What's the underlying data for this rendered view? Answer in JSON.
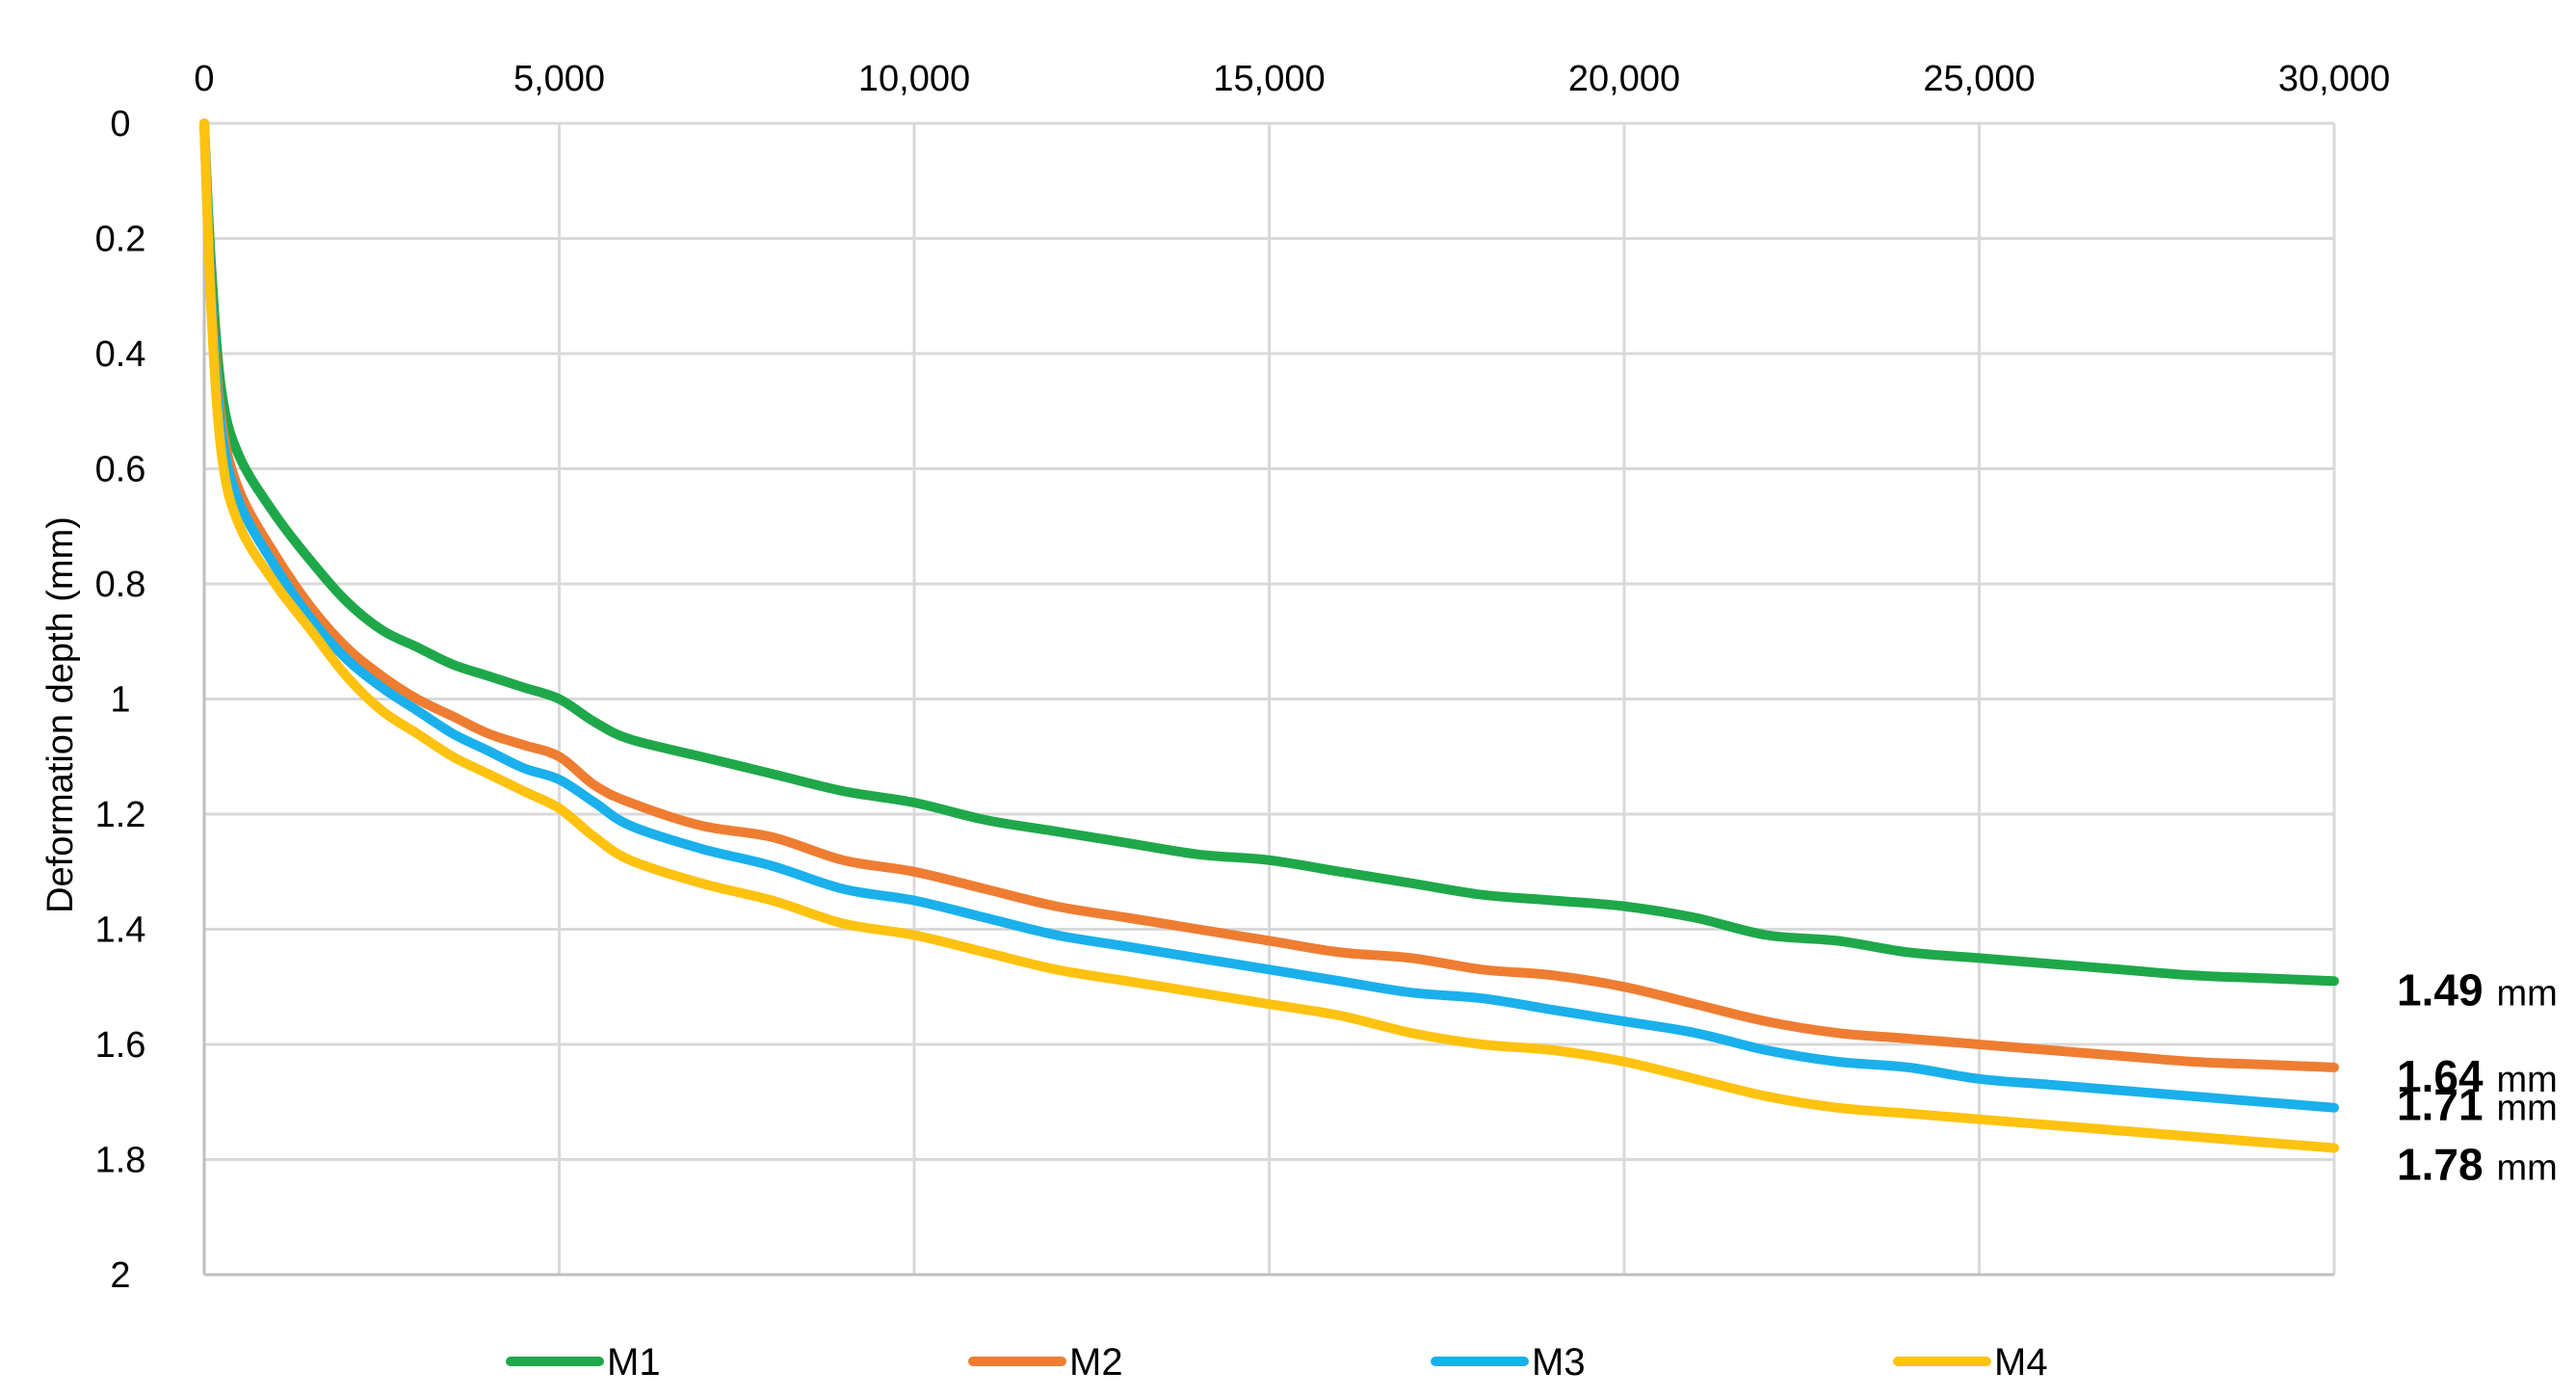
{
  "chart_data": {
    "type": "line",
    "title": "",
    "xlabel": "",
    "ylabel": "Deformation depth (mm)",
    "xlim": [
      0,
      30000
    ],
    "ylim": [
      0,
      2
    ],
    "y_inverted": true,
    "x_axis_position": "top",
    "grid": true,
    "legend_position": "bottom",
    "x_ticks": [
      {
        "value": 0,
        "label": "0"
      },
      {
        "value": 5000,
        "label": "5,000"
      },
      {
        "value": 10000,
        "label": "10,000"
      },
      {
        "value": 15000,
        "label": "15,000"
      },
      {
        "value": 20000,
        "label": "20,000"
      },
      {
        "value": 25000,
        "label": "25,000"
      },
      {
        "value": 30000,
        "label": "30,000"
      }
    ],
    "y_ticks": [
      {
        "value": 0,
        "label": "0"
      },
      {
        "value": 0.2,
        "label": "0.2"
      },
      {
        "value": 0.4,
        "label": "0.4"
      },
      {
        "value": 0.6,
        "label": "0.6"
      },
      {
        "value": 0.8,
        "label": "0.8"
      },
      {
        "value": 1,
        "label": "1"
      },
      {
        "value": 1.2,
        "label": "1.2"
      },
      {
        "value": 1.4,
        "label": "1.4"
      },
      {
        "value": 1.6,
        "label": "1.6"
      },
      {
        "value": 1.8,
        "label": "1.8"
      },
      {
        "value": 2,
        "label": "2"
      }
    ],
    "series": [
      {
        "name": "M1",
        "color": "#1fa84a",
        "end_value": "1.49",
        "end_unit": "mm",
        "x": [
          0,
          100,
          250,
          500,
          1000,
          1500,
          2000,
          2500,
          3000,
          3500,
          4000,
          4500,
          5000,
          5500,
          6000,
          7000,
          8000,
          9000,
          10000,
          11000,
          12000,
          13000,
          14000,
          15000,
          16000,
          17000,
          18000,
          19000,
          20000,
          21000,
          22000,
          23000,
          24000,
          25000,
          26000,
          27000,
          28000,
          29000,
          30000
        ],
        "y": [
          0,
          0.25,
          0.47,
          0.58,
          0.68,
          0.76,
          0.83,
          0.88,
          0.91,
          0.94,
          0.96,
          0.98,
          1.0,
          1.04,
          1.07,
          1.1,
          1.13,
          1.16,
          1.18,
          1.21,
          1.23,
          1.25,
          1.27,
          1.28,
          1.3,
          1.32,
          1.34,
          1.35,
          1.36,
          1.38,
          1.41,
          1.42,
          1.44,
          1.45,
          1.46,
          1.47,
          1.48,
          1.485,
          1.49
        ]
      },
      {
        "name": "M2",
        "color": "#ee7d32",
        "end_value": "1.64",
        "end_unit": "mm",
        "x": [
          0,
          100,
          250,
          500,
          1000,
          1500,
          2000,
          2500,
          3000,
          3500,
          4000,
          4500,
          5000,
          5500,
          6000,
          7000,
          8000,
          9000,
          10000,
          11000,
          12000,
          13000,
          14000,
          15000,
          16000,
          17000,
          18000,
          19000,
          20000,
          21000,
          22000,
          23000,
          24000,
          25000,
          26000,
          27000,
          28000,
          29000,
          30000
        ],
        "y": [
          0,
          0.3,
          0.52,
          0.64,
          0.75,
          0.84,
          0.91,
          0.96,
          1.0,
          1.03,
          1.06,
          1.08,
          1.1,
          1.15,
          1.18,
          1.22,
          1.24,
          1.28,
          1.3,
          1.33,
          1.36,
          1.38,
          1.4,
          1.42,
          1.44,
          1.45,
          1.47,
          1.48,
          1.5,
          1.53,
          1.56,
          1.58,
          1.59,
          1.6,
          1.61,
          1.62,
          1.63,
          1.635,
          1.64
        ]
      },
      {
        "name": "M3",
        "color": "#1ab0ec",
        "end_value": "1.71",
        "end_unit": "mm",
        "x": [
          0,
          100,
          250,
          500,
          1000,
          1500,
          2000,
          2500,
          3000,
          3500,
          4000,
          4500,
          5000,
          5500,
          6000,
          7000,
          8000,
          9000,
          10000,
          11000,
          12000,
          13000,
          14000,
          15000,
          16000,
          17000,
          18000,
          19000,
          20000,
          21000,
          22000,
          23000,
          24000,
          25000,
          26000,
          27000,
          28000,
          29000,
          30000
        ],
        "y": [
          0,
          0.31,
          0.54,
          0.66,
          0.77,
          0.86,
          0.93,
          0.98,
          1.02,
          1.06,
          1.09,
          1.12,
          1.14,
          1.18,
          1.22,
          1.26,
          1.29,
          1.33,
          1.35,
          1.38,
          1.41,
          1.43,
          1.45,
          1.47,
          1.49,
          1.51,
          1.52,
          1.54,
          1.56,
          1.58,
          1.61,
          1.63,
          1.64,
          1.66,
          1.67,
          1.68,
          1.69,
          1.7,
          1.71
        ]
      },
      {
        "name": "M4",
        "color": "#fec20f",
        "end_value": "1.78",
        "end_unit": "mm",
        "x": [
          0,
          100,
          250,
          500,
          1000,
          1500,
          2000,
          2500,
          3000,
          3500,
          4000,
          4500,
          5000,
          5500,
          6000,
          7000,
          8000,
          9000,
          10000,
          11000,
          12000,
          13000,
          14000,
          15000,
          16000,
          17000,
          18000,
          19000,
          20000,
          21000,
          22000,
          23000,
          24000,
          25000,
          26000,
          27000,
          28000,
          29000,
          30000
        ],
        "y": [
          0,
          0.33,
          0.58,
          0.7,
          0.8,
          0.88,
          0.96,
          1.02,
          1.06,
          1.1,
          1.13,
          1.16,
          1.19,
          1.24,
          1.28,
          1.32,
          1.35,
          1.39,
          1.41,
          1.44,
          1.47,
          1.49,
          1.51,
          1.53,
          1.55,
          1.58,
          1.6,
          1.61,
          1.63,
          1.66,
          1.69,
          1.71,
          1.72,
          1.73,
          1.74,
          1.75,
          1.76,
          1.77,
          1.78
        ]
      }
    ]
  }
}
